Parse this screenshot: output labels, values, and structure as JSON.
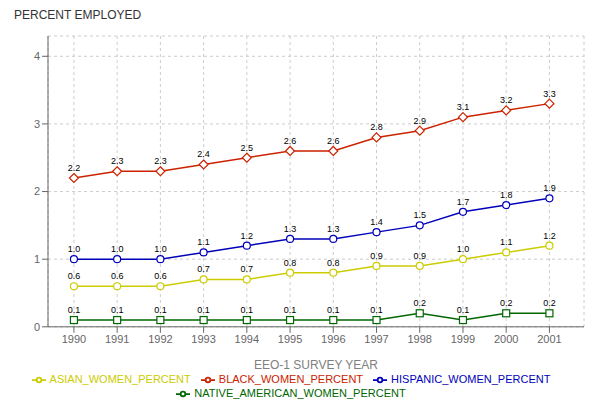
{
  "chart_data": {
    "type": "line",
    "xlabel": "EEO-1 SURVEY YEAR",
    "ylabel": "PERCENT EMPLOYED",
    "x": [
      1990,
      1991,
      1992,
      1993,
      1994,
      1995,
      1996,
      1997,
      1998,
      1999,
      2000,
      2001
    ],
    "xlim": [
      1989.4,
      2001.8
    ],
    "xticks": [
      1990,
      1991,
      1992,
      1993,
      1994,
      1995,
      1996,
      1997,
      1998,
      1999,
      2000,
      2001
    ],
    "ylim": [
      0,
      4.3
    ],
    "yticks": [
      0,
      1,
      2,
      3,
      4
    ],
    "grid": true,
    "legend": "bottom",
    "data_labels": true,
    "series": [
      {
        "name": "BLACK_WOMEN_PERCENT",
        "color": "#cc2200",
        "marker": "diamond",
        "values": [
          2.2,
          2.3,
          2.3,
          2.4,
          2.5,
          2.6,
          2.6,
          2.8,
          2.9,
          3.1,
          3.2,
          3.3
        ],
        "value_labels": [
          "2.2",
          "2.3",
          "2.3",
          "2.4",
          "2.5",
          "2.6",
          "2.6",
          "2.8",
          "2.9",
          "3.1",
          "3.2",
          "3.3"
        ]
      },
      {
        "name": "HISPANIC_WOMEN_PERCENT",
        "color": "#0000bb",
        "marker": "circle",
        "values": [
          1.0,
          1.0,
          1.0,
          1.1,
          1.2,
          1.3,
          1.3,
          1.4,
          1.5,
          1.7,
          1.8,
          1.9
        ],
        "value_labels": [
          "1.0",
          "1.0",
          "1.0",
          "1.1",
          "1.2",
          "1.3",
          "1.3",
          "1.4",
          "1.5",
          "1.7",
          "1.8",
          "1.9"
        ]
      },
      {
        "name": "ASIAN_WOMEN_PERCENT",
        "color": "#cccc00",
        "marker": "circle",
        "values": [
          0.6,
          0.6,
          0.6,
          0.7,
          0.7,
          0.8,
          0.8,
          0.9,
          0.9,
          1.0,
          1.1,
          1.2
        ],
        "value_labels": [
          "0.6",
          "0.6",
          "0.6",
          "0.7",
          "0.7",
          "0.8",
          "0.8",
          "0.9",
          "0.9",
          "1.0",
          "1.1",
          "1.2"
        ]
      },
      {
        "name": "NATIVE_AMERICAN_WOMEN_PERCENT",
        "color": "#006600",
        "marker": "square",
        "values": [
          0.1,
          0.1,
          0.1,
          0.1,
          0.1,
          0.1,
          0.1,
          0.1,
          0.2,
          0.1,
          0.2,
          0.2
        ],
        "value_labels": [
          "0.1",
          "0.1",
          "0.1",
          "0.1",
          "0.1",
          "0.1",
          "0.1",
          "0.1",
          "0.2",
          "0.1",
          "0.2",
          "0.2"
        ]
      }
    ]
  }
}
